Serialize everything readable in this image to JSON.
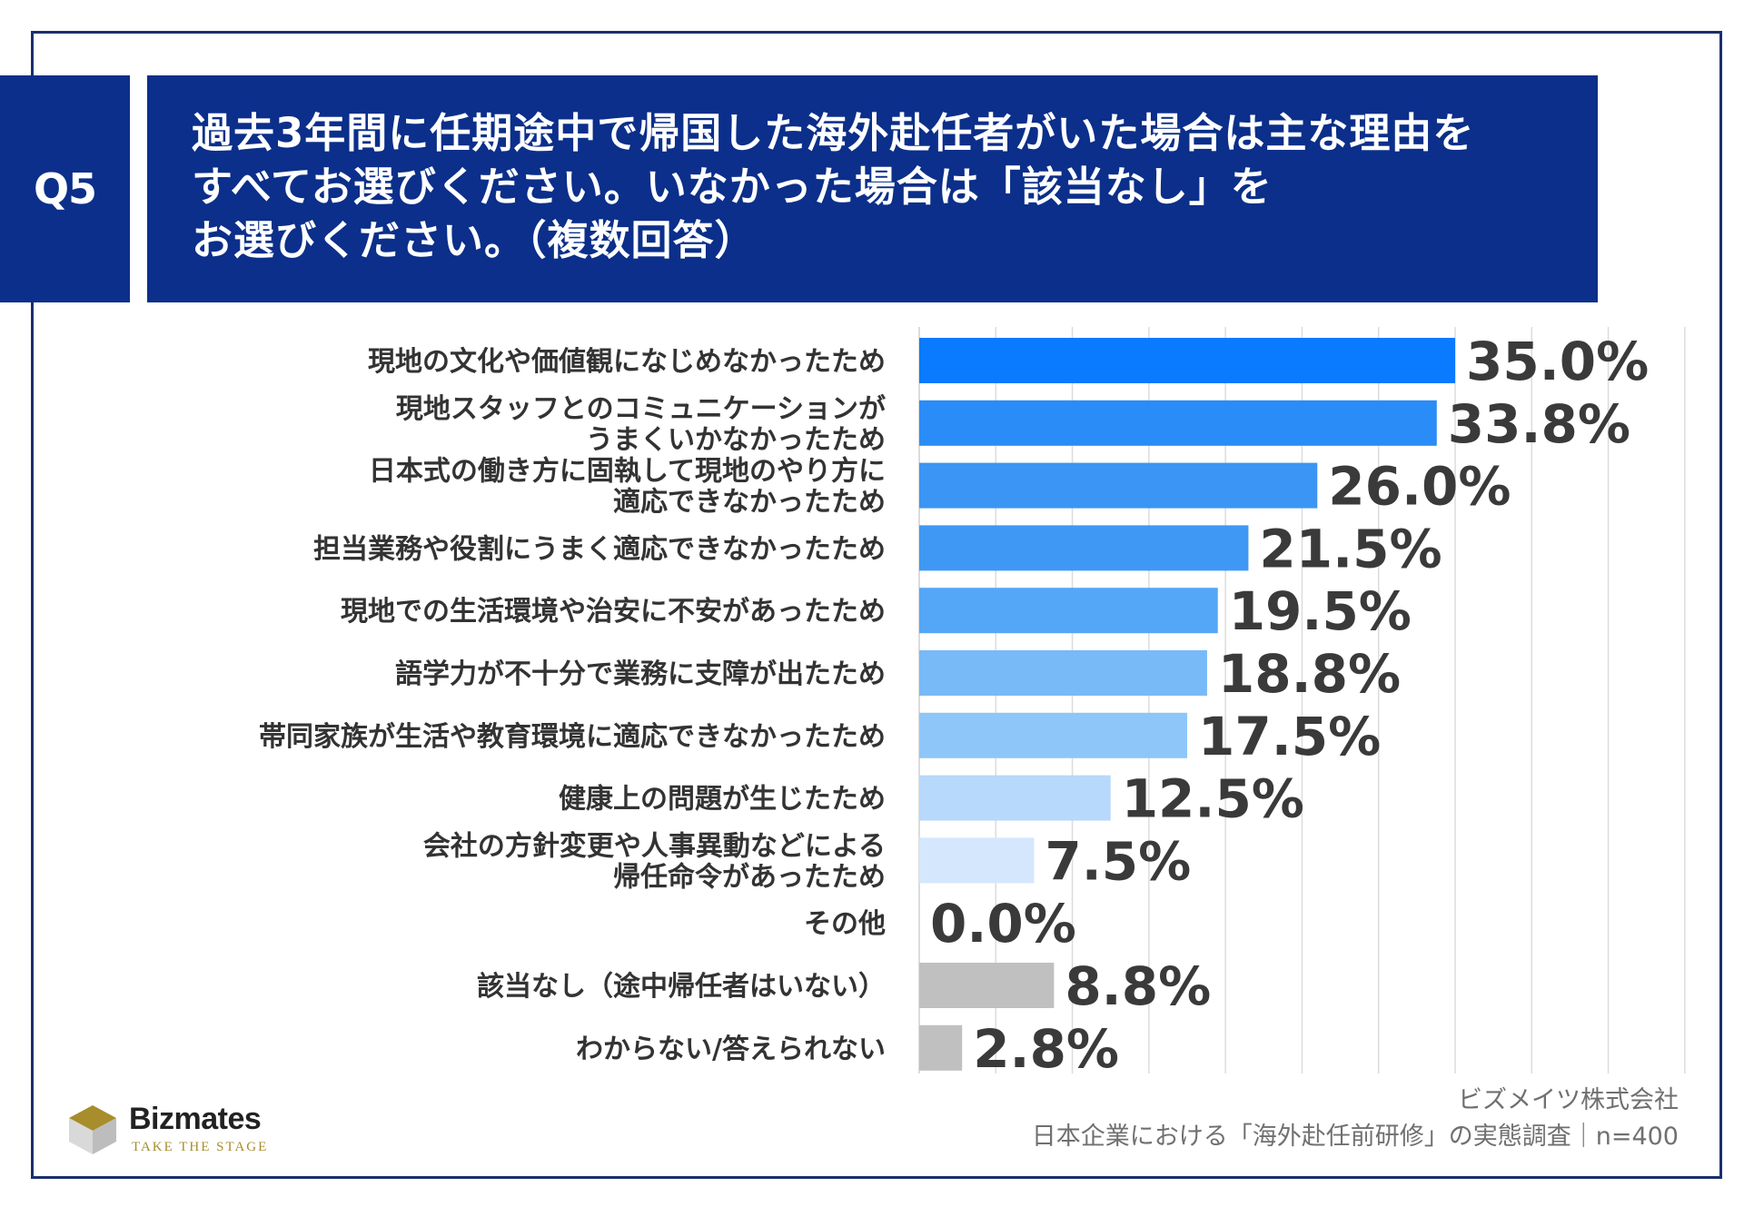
{
  "question": {
    "badge": "Q5",
    "lines": [
      "過去3年間に任期途中で帰国した海外赴任者がいた場合は主な理由を",
      "すべてお選びください。いなかった場合は「該当なし」を",
      "お選びください。（複数回答）"
    ]
  },
  "chart_data": {
    "type": "bar",
    "orientation": "horizontal",
    "categories": [
      [
        "現地の文化や価値観になじめなかったため"
      ],
      [
        "現地スタッフとのコミュニケーションが",
        "うまくいかなかったため"
      ],
      [
        "日本式の働き方に固執して現地のやり方に",
        "適応できなかったため"
      ],
      [
        "担当業務や役割にうまく適応できなかったため"
      ],
      [
        "現地での生活環境や治安に不安があったため"
      ],
      [
        "語学力が不十分で業務に支障が出たため"
      ],
      [
        "帯同家族が生活や教育環境に適応できなかったため"
      ],
      [
        "健康上の問題が生じたため"
      ],
      [
        "会社の方針変更や人事異動などによる",
        "帰任命令があったため"
      ],
      [
        "その他"
      ],
      [
        "該当なし（途中帰任者はいない）"
      ],
      [
        "わからない/答えられない"
      ]
    ],
    "values": [
      35.0,
      33.8,
      26.0,
      21.5,
      19.5,
      18.8,
      17.5,
      12.5,
      7.5,
      0.0,
      8.8,
      2.8
    ],
    "value_labels": [
      "35.0%",
      "33.8%",
      "26.0%",
      "21.5%",
      "19.5%",
      "18.8%",
      "17.5%",
      "12.5%",
      "7.5%",
      "0.0%",
      "8.8%",
      "2.8%"
    ],
    "bar_colors": [
      "#0a7aff",
      "#2a8cf6",
      "#3a95f4",
      "#3f98f4",
      "#54a6f6",
      "#78b9f8",
      "#8fc6fa",
      "#b7d9fb",
      "#d4e7fd",
      "#d4e7fd",
      "#c0c0c0",
      "#c0c0c0"
    ],
    "xlim": [
      0,
      50
    ],
    "grid": true,
    "grid_color": "#dcdcdc"
  },
  "credit": {
    "company": "ビズメイツ株式会社",
    "source": "日本企業における「海外赴任前研修」の実態調査｜n=400"
  },
  "logo": {
    "name": "Bizmates",
    "tagline": "TAKE THE STAGE",
    "colors": {
      "gold": "#a78d2c",
      "gray": "#cfcfcf"
    }
  }
}
